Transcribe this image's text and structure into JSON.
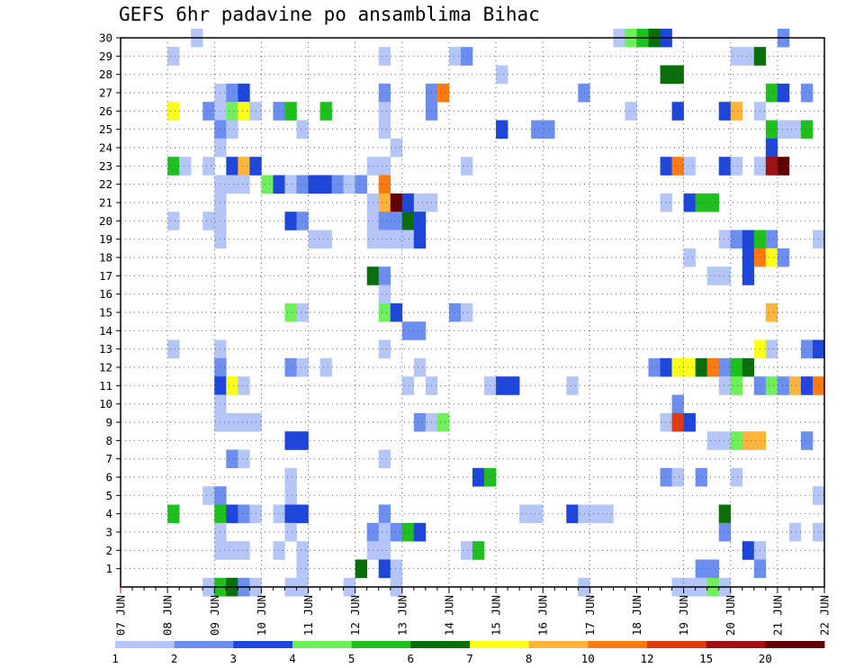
{
  "chart_data": {
    "type": "heatmap",
    "title": "GEFS 6hr padavine po ansamblima Bihac",
    "x_tick_labels": [
      "07 JUN",
      "08 JUN",
      "09 JUN",
      "10 JUN",
      "11 JUN",
      "12 JUN",
      "13 JUN",
      "14 JUN",
      "15 JUN",
      "16 JUN",
      "17 JUN",
      "18 JUN",
      "19 JUN",
      "20 JUN",
      "21 JUN",
      "22 JUN"
    ],
    "y_tick_labels": [
      "1",
      "2",
      "3",
      "4",
      "5",
      "6",
      "7",
      "8",
      "9",
      "10",
      "11",
      "12",
      "13",
      "14",
      "15",
      "16",
      "17",
      "18",
      "19",
      "20",
      "21",
      "22",
      "23",
      "24",
      "25",
      "26",
      "27",
      "28",
      "29",
      "30"
    ],
    "ylim": [
      0,
      30
    ],
    "x_steps_per_day": 4,
    "grid": true,
    "legend": {
      "placement": "bottom",
      "levels": [
        "1",
        "2",
        "3",
        "4",
        "5",
        "6",
        "7",
        "8",
        "10",
        "12",
        "15",
        "20"
      ],
      "colors": [
        "#b3c6f7",
        "#6b8ef0",
        "#1f46db",
        "#6ef05a",
        "#1ec01e",
        "#0a6e0a",
        "#ffff1a",
        "#ffb43a",
        "#ff7a10",
        "#e03a10",
        "#a01010",
        "#600000"
      ]
    },
    "cells": [
      {
        "m": 30,
        "x": [
          [
            6,
            1
          ],
          [
            42,
            1
          ],
          [
            43,
            4
          ],
          [
            44,
            5
          ],
          [
            45,
            6
          ],
          [
            46,
            3
          ],
          [
            56,
            2
          ]
        ]
      },
      {
        "m": 29,
        "x": [
          [
            4,
            1
          ],
          [
            22,
            1
          ],
          [
            28,
            1
          ],
          [
            29,
            2
          ],
          [
            52,
            1
          ],
          [
            53,
            1
          ],
          [
            54,
            6
          ]
        ]
      },
      {
        "m": 28,
        "x": [
          [
            32,
            1
          ],
          [
            46,
            6
          ],
          [
            47,
            6
          ]
        ]
      },
      {
        "m": 27,
        "x": [
          [
            8,
            1
          ],
          [
            9,
            2
          ],
          [
            10,
            3
          ],
          [
            22,
            2
          ],
          [
            26,
            2
          ],
          [
            27,
            9
          ],
          [
            39,
            2
          ],
          [
            55,
            5
          ],
          [
            56,
            3
          ],
          [
            58,
            2
          ]
        ]
      },
      {
        "m": 26,
        "x": [
          [
            4,
            7
          ],
          [
            7,
            2
          ],
          [
            8,
            1
          ],
          [
            9,
            4
          ],
          [
            10,
            7
          ],
          [
            11,
            1
          ],
          [
            13,
            2
          ],
          [
            14,
            5
          ],
          [
            17,
            5
          ],
          [
            22,
            1
          ],
          [
            26,
            2
          ],
          [
            43,
            1
          ],
          [
            47,
            3
          ],
          [
            51,
            3
          ],
          [
            52,
            8
          ],
          [
            54,
            1
          ]
        ]
      },
      {
        "m": 25,
        "x": [
          [
            8,
            2
          ],
          [
            9,
            1
          ],
          [
            15,
            1
          ],
          [
            22,
            1
          ],
          [
            32,
            3
          ],
          [
            35,
            2
          ],
          [
            36,
            2
          ],
          [
            55,
            5
          ],
          [
            56,
            1
          ],
          [
            57,
            1
          ],
          [
            58,
            5
          ]
        ]
      },
      {
        "m": 24,
        "x": [
          [
            8,
            1
          ],
          [
            23,
            1
          ],
          [
            55,
            3
          ]
        ]
      },
      {
        "m": 23,
        "x": [
          [
            4,
            5
          ],
          [
            5,
            1
          ],
          [
            7,
            1
          ],
          [
            9,
            3
          ],
          [
            10,
            8
          ],
          [
            11,
            3
          ],
          [
            21,
            1
          ],
          [
            22,
            1
          ],
          [
            29,
            1
          ],
          [
            46,
            3
          ],
          [
            47,
            9
          ],
          [
            48,
            1
          ],
          [
            51,
            3
          ],
          [
            52,
            1
          ],
          [
            54,
            1
          ],
          [
            55,
            11
          ],
          [
            56,
            12
          ]
        ]
      },
      {
        "m": 22,
        "x": [
          [
            8,
            1
          ],
          [
            9,
            1
          ],
          [
            10,
            1
          ],
          [
            12,
            4
          ],
          [
            13,
            3
          ],
          [
            14,
            1
          ],
          [
            15,
            2
          ],
          [
            16,
            3
          ],
          [
            17,
            3
          ],
          [
            18,
            2
          ],
          [
            19,
            1
          ],
          [
            20,
            2
          ],
          [
            22,
            9
          ]
        ]
      },
      {
        "m": 21,
        "x": [
          [
            8,
            1
          ],
          [
            21,
            1
          ],
          [
            22,
            8
          ],
          [
            23,
            12
          ],
          [
            24,
            3
          ],
          [
            25,
            1
          ],
          [
            26,
            1
          ],
          [
            46,
            1
          ],
          [
            48,
            3
          ],
          [
            49,
            5
          ],
          [
            50,
            5
          ]
        ]
      },
      {
        "m": 20,
        "x": [
          [
            4,
            1
          ],
          [
            7,
            1
          ],
          [
            8,
            1
          ],
          [
            14,
            3
          ],
          [
            15,
            2
          ],
          [
            21,
            1
          ],
          [
            22,
            2
          ],
          [
            23,
            2
          ],
          [
            24,
            6
          ],
          [
            25,
            3
          ]
        ]
      },
      {
        "m": 19,
        "x": [
          [
            8,
            1
          ],
          [
            16,
            1
          ],
          [
            17,
            1
          ],
          [
            21,
            1
          ],
          [
            22,
            1
          ],
          [
            23,
            1
          ],
          [
            24,
            1
          ],
          [
            25,
            3
          ],
          [
            51,
            1
          ],
          [
            52,
            2
          ],
          [
            53,
            3
          ],
          [
            54,
            5
          ],
          [
            55,
            2
          ],
          [
            59,
            1
          ]
        ]
      },
      {
        "m": 18,
        "x": [
          [
            48,
            1
          ],
          [
            53,
            3
          ],
          [
            54,
            9
          ],
          [
            55,
            7
          ],
          [
            56,
            2
          ]
        ]
      },
      {
        "m": 17,
        "x": [
          [
            21,
            6
          ],
          [
            22,
            2
          ],
          [
            50,
            1
          ],
          [
            51,
            1
          ],
          [
            53,
            3
          ]
        ]
      },
      {
        "m": 16,
        "x": [
          [
            22,
            1
          ]
        ]
      },
      {
        "m": 15,
        "x": [
          [
            14,
            4
          ],
          [
            15,
            1
          ],
          [
            22,
            4
          ],
          [
            23,
            3
          ],
          [
            28,
            2
          ],
          [
            29,
            1
          ],
          [
            55,
            8
          ]
        ]
      },
      {
        "m": 14,
        "x": [
          [
            24,
            2
          ],
          [
            25,
            2
          ]
        ]
      },
      {
        "m": 13,
        "x": [
          [
            4,
            1
          ],
          [
            8,
            1
          ],
          [
            22,
            1
          ],
          [
            54,
            7
          ],
          [
            55,
            1
          ],
          [
            58,
            2
          ],
          [
            59,
            3
          ]
        ]
      },
      {
        "m": 12,
        "x": [
          [
            8,
            2
          ],
          [
            14,
            2
          ],
          [
            15,
            1
          ],
          [
            17,
            1
          ],
          [
            25,
            1
          ],
          [
            45,
            2
          ],
          [
            46,
            3
          ],
          [
            47,
            7
          ],
          [
            48,
            7
          ],
          [
            49,
            6
          ],
          [
            50,
            9
          ],
          [
            51,
            2
          ],
          [
            52,
            5
          ],
          [
            53,
            6
          ]
        ]
      },
      {
        "m": 11,
        "x": [
          [
            8,
            3
          ],
          [
            9,
            7
          ],
          [
            10,
            1
          ],
          [
            24,
            1
          ],
          [
            26,
            1
          ],
          [
            31,
            1
          ],
          [
            32,
            3
          ],
          [
            33,
            3
          ],
          [
            38,
            1
          ],
          [
            51,
            1
          ],
          [
            52,
            4
          ],
          [
            54,
            2
          ],
          [
            55,
            4
          ],
          [
            56,
            2
          ],
          [
            57,
            8
          ],
          [
            58,
            3
          ],
          [
            59,
            9
          ]
        ]
      },
      {
        "m": 10,
        "x": [
          [
            8,
            1
          ],
          [
            47,
            2
          ]
        ]
      },
      {
        "m": 9,
        "x": [
          [
            8,
            1
          ],
          [
            9,
            1
          ],
          [
            10,
            1
          ],
          [
            11,
            1
          ],
          [
            25,
            2
          ],
          [
            26,
            1
          ],
          [
            27,
            4
          ],
          [
            46,
            1
          ],
          [
            47,
            10
          ],
          [
            48,
            3
          ]
        ]
      },
      {
        "m": 8,
        "x": [
          [
            14,
            3
          ],
          [
            15,
            3
          ],
          [
            50,
            1
          ],
          [
            51,
            1
          ],
          [
            52,
            4
          ],
          [
            53,
            8
          ],
          [
            54,
            8
          ],
          [
            58,
            2
          ]
        ]
      },
      {
        "m": 7,
        "x": [
          [
            9,
            2
          ],
          [
            10,
            1
          ],
          [
            22,
            1
          ]
        ]
      },
      {
        "m": 6,
        "x": [
          [
            14,
            1
          ],
          [
            30,
            3
          ],
          [
            31,
            5
          ],
          [
            46,
            2
          ],
          [
            47,
            1
          ],
          [
            49,
            2
          ],
          [
            52,
            1
          ]
        ]
      },
      {
        "m": 5,
        "x": [
          [
            7,
            1
          ],
          [
            8,
            2
          ],
          [
            14,
            1
          ],
          [
            59,
            1
          ]
        ]
      },
      {
        "m": 4,
        "x": [
          [
            4,
            5
          ],
          [
            8,
            5
          ],
          [
            9,
            3
          ],
          [
            10,
            2
          ],
          [
            11,
            1
          ],
          [
            13,
            1
          ],
          [
            14,
            3
          ],
          [
            15,
            3
          ],
          [
            22,
            2
          ],
          [
            34,
            1
          ],
          [
            35,
            1
          ],
          [
            38,
            3
          ],
          [
            39,
            1
          ],
          [
            40,
            1
          ],
          [
            41,
            1
          ],
          [
            51,
            6
          ]
        ]
      },
      {
        "m": 3,
        "x": [
          [
            8,
            1
          ],
          [
            14,
            1
          ],
          [
            21,
            2
          ],
          [
            22,
            1
          ],
          [
            23,
            2
          ],
          [
            24,
            5
          ],
          [
            25,
            3
          ],
          [
            51,
            2
          ],
          [
            57,
            1
          ],
          [
            59,
            1
          ]
        ]
      },
      {
        "m": 2,
        "x": [
          [
            8,
            1
          ],
          [
            9,
            1
          ],
          [
            10,
            1
          ],
          [
            13,
            1
          ],
          [
            15,
            1
          ],
          [
            21,
            1
          ],
          [
            22,
            1
          ],
          [
            29,
            1
          ],
          [
            30,
            5
          ],
          [
            53,
            3
          ],
          [
            54,
            1
          ]
        ]
      },
      {
        "m": 1,
        "x": [
          [
            15,
            1
          ],
          [
            20,
            6
          ],
          [
            22,
            3
          ],
          [
            23,
            1
          ],
          [
            49,
            2
          ],
          [
            50,
            2
          ],
          [
            54,
            2
          ]
        ]
      },
      {
        "m": 0,
        "x": [
          [
            7,
            1
          ],
          [
            8,
            5
          ],
          [
            9,
            6
          ],
          [
            10,
            2
          ],
          [
            11,
            1
          ],
          [
            14,
            1
          ],
          [
            15,
            1
          ],
          [
            19,
            1
          ],
          [
            23,
            1
          ],
          [
            39,
            1
          ],
          [
            47,
            1
          ],
          [
            48,
            1
          ],
          [
            49,
            1
          ],
          [
            50,
            4
          ],
          [
            51,
            1
          ]
        ]
      }
    ]
  }
}
